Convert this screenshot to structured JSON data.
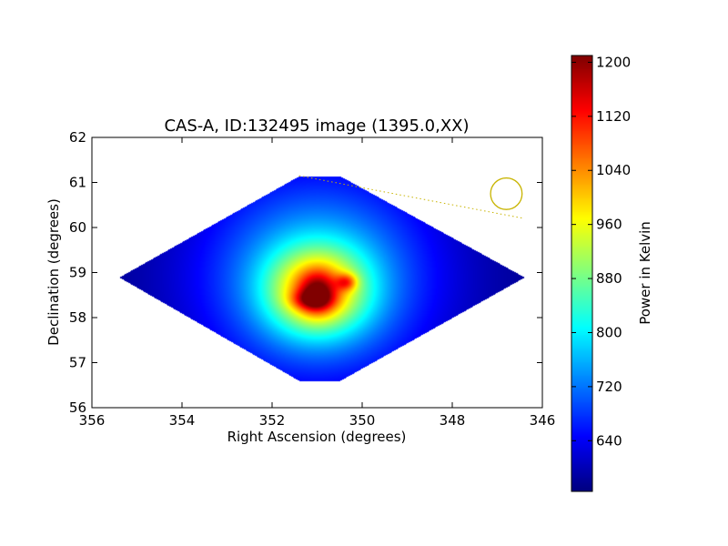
{
  "chart_data": {
    "type": "heatmap",
    "title": "CAS-A, ID:132495 image (1395.0,XX)",
    "xlabel": "Right Ascension (degrees)",
    "ylabel": "Declination (degrees)",
    "x_range": [
      356,
      346
    ],
    "y_range": [
      56,
      62
    ],
    "x_ticks": [
      "356",
      "354",
      "352",
      "350",
      "348",
      "346"
    ],
    "y_ticks": [
      "56",
      "57",
      "58",
      "59",
      "60",
      "61",
      "62"
    ],
    "x_tick_values": [
      356,
      354,
      352,
      350,
      348,
      346
    ],
    "y_tick_values": [
      56,
      57,
      58,
      59,
      60,
      61,
      62
    ],
    "colormap": "jet",
    "colorbar": {
      "label": "Power in Kelvin",
      "min": 565,
      "max": 1210,
      "ticks": [
        "640",
        "720",
        "800",
        "880",
        "960",
        "1040",
        "1120",
        "1200"
      ],
      "tick_values": [
        640,
        720,
        800,
        880,
        960,
        1040,
        1120,
        1200
      ]
    },
    "coverage_polygon_deg": [
      [
        355.4,
        58.9
      ],
      [
        351.4,
        61.15
      ],
      [
        350.5,
        61.15
      ],
      [
        346.4,
        58.9
      ],
      [
        350.5,
        56.6
      ],
      [
        351.4,
        56.6
      ]
    ],
    "background_value": 575,
    "emission_components": [
      {
        "ra": 351.0,
        "dec": 58.9,
        "sigma_ra": 1.8,
        "sigma_dec": 1.6,
        "amp": 210
      },
      {
        "ra": 351.0,
        "dec": 58.6,
        "sigma_ra": 0.75,
        "sigma_dec": 0.65,
        "amp": 300
      },
      {
        "ra": 351.0,
        "dec": 58.55,
        "sigma_ra": 0.28,
        "sigma_dec": 0.32,
        "amp": 170
      },
      {
        "ra": 350.35,
        "dec": 58.8,
        "sigma_ra": 0.16,
        "sigma_dec": 0.13,
        "amp": 150
      },
      {
        "ra": 351.15,
        "dec": 58.4,
        "sigma_ra": 0.3,
        "sigma_dec": 0.15,
        "amp": 120
      }
    ],
    "annotations": [
      {
        "type": "circle",
        "ra": 346.8,
        "dec": 60.75,
        "radius_deg": 0.35,
        "color": "#c8b400"
      },
      {
        "type": "dotted-line",
        "from": [
          351.4,
          61.15
        ],
        "to": [
          346.4,
          60.2
        ],
        "color": "#c8b400"
      }
    ],
    "grid": false,
    "legend": "none"
  }
}
